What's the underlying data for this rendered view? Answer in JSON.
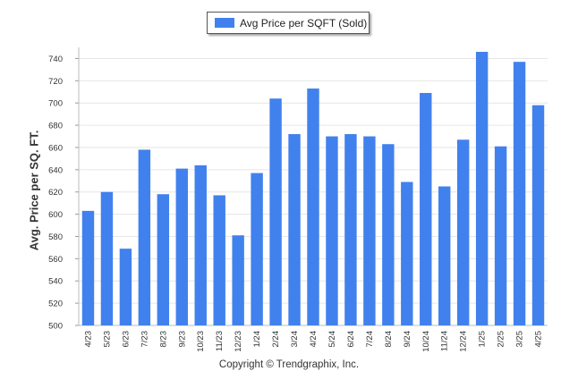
{
  "chart_data": {
    "type": "bar",
    "legend": {
      "label": "Avg Price per SQFT (Sold)",
      "position": "top-center"
    },
    "ylabel": "Avg. Price per SQ. FT.",
    "xlabel": "",
    "ylim": [
      500,
      750
    ],
    "yticks": [
      500,
      520,
      540,
      560,
      580,
      600,
      620,
      640,
      660,
      680,
      700,
      720,
      740
    ],
    "grid": true,
    "color": "#4181EE",
    "categories": [
      "4/23",
      "5/23",
      "6/23",
      "7/23",
      "8/23",
      "9/23",
      "10/23",
      "11/23",
      "12/23",
      "1/24",
      "2/24",
      "3/24",
      "4/24",
      "5/24",
      "6/24",
      "7/24",
      "8/24",
      "9/24",
      "10/24",
      "11/24",
      "12/24",
      "1/25",
      "2/25",
      "3/25",
      "4/25"
    ],
    "series": [
      {
        "name": "Avg Price per SQFT (Sold)",
        "values": [
          603,
          620,
          569,
          658,
          618,
          641,
          644,
          617,
          581,
          637,
          704,
          672,
          713,
          670,
          672,
          670,
          663,
          629,
          709,
          625,
          667,
          746,
          661,
          737,
          698
        ]
      }
    ]
  },
  "footer": {
    "copyright": "Copyright © Trendgraphix, Inc."
  }
}
